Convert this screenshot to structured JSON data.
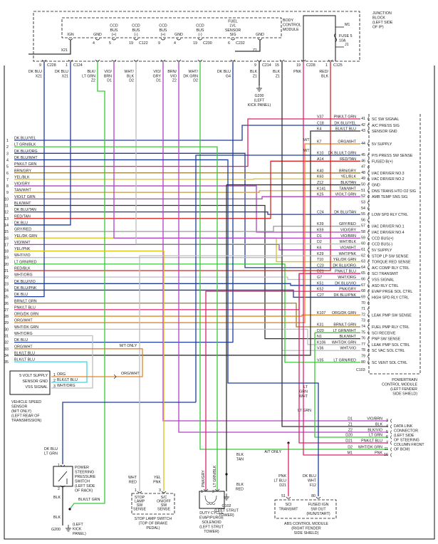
{
  "colors": {
    "DK BLU": "#1f3c9c",
    "LT GRN": "#39c939",
    "BLK": "#333333",
    "ORG": "#e0862a",
    "WHT": "#bdbdbd",
    "YEL": "#d6c21a",
    "VIO": "#b040c4",
    "PNK": "#e0206e",
    "RED": "#d82525",
    "BRN": "#9a7a30",
    "TAN": "#c9a256",
    "GRY": "#9a9a9a",
    "LT BLU": "#3fd3e6",
    "DK GRN": "#1f8a3a"
  },
  "junction_block": {
    "label": [
      "JUNCTION",
      "BLOCK",
      "(LEFT SIDE",
      "OF IP)"
    ],
    "fuse": [
      "FUSE 5",
      "10A"
    ],
    "feeds": [
      "M1",
      "J1"
    ]
  },
  "bcm": {
    "label": [
      "BODY",
      "CONTROL",
      "MODULE"
    ],
    "pins": [
      {
        "lines": [
          "IGN"
        ],
        "num": "",
        "conn": ""
      },
      {
        "lines": [
          "GND"
        ],
        "num": "4",
        "conn": ""
      },
      {
        "lines": [
          "CCD",
          "BUS",
          "(+)"
        ],
        "num": "5",
        "conn": ""
      },
      {
        "lines": [
          "CCD",
          "BUS",
          "(-)"
        ],
        "num": "19",
        "conn": "C122"
      },
      {
        "lines": [
          "CCD",
          "BUS",
          "(+)"
        ],
        "num": "9",
        "conn": ""
      },
      {
        "lines": [
          "GND"
        ],
        "num": "4",
        "conn": ""
      },
      {
        "lines": [
          "CCD",
          "BUS",
          "(-)"
        ],
        "num": "19",
        "conn": "C230"
      },
      {
        "lines": [
          "FUEL",
          "LVL",
          "SENSOR",
          "SIG"
        ],
        "num": "6",
        "conn": "C232"
      },
      {
        "lines": [
          "GND"
        ],
        "num": "",
        "conn": ""
      }
    ],
    "ign_code": "X21",
    "gnd_code": "Z1"
  },
  "top_wires": [
    {
      "pin": "9",
      "conn": "C228",
      "color": "DK BLU",
      "code": "X21"
    },
    {
      "pin": "1",
      "conn": "C124",
      "color": "DK BLU",
      "code": "X21"
    },
    {
      "pin": "",
      "conn": "",
      "color": "BLK/LT GRN",
      "code": "Z2"
    },
    {
      "pin": "",
      "conn": "",
      "color": "VIO/BRN",
      "code": "D1"
    },
    {
      "pin": "",
      "conn": "",
      "color": "WHT/BLK",
      "code": "D2"
    },
    {
      "pin": "",
      "conn": "",
      "color": "VIO/GRY",
      "code": "D1"
    },
    {
      "pin": "",
      "conn": "",
      "color": "BRN/VIO",
      "code": "Z2"
    },
    {
      "pin": "",
      "conn": "",
      "color": "WHT/DK GRN",
      "code": "D2"
    },
    {
      "pin": "",
      "conn": "",
      "color": "DK BLU",
      "code": "G4"
    },
    {
      "pin": "9",
      "conn": "C214",
      "color": "BLK",
      "code": "Z1"
    },
    {
      "pin": "15",
      "conn": "",
      "color": "BLK",
      "code": "Z1"
    },
    {
      "pin": "19",
      "conn": "C228",
      "color": "PNK",
      "code": ""
    },
    {
      "pin": "1",
      "conn": "C125",
      "color": "RED/BLK",
      "code": ""
    }
  ],
  "g200_top": [
    "G200",
    "(LEFT",
    "KICK PANEL)"
  ],
  "left_connector": [
    "DK BLU/YEL",
    "LT GRN/BLK",
    "DK BLU/ORG",
    "DK BLU/WHT",
    "PNK/LT GRN",
    "BRN/GRY",
    "YEL/BLK",
    "VIO/GRY",
    "TAN/WHT",
    "VIO/LT GRN",
    "BLK/WHT",
    "DK BLU/TAN",
    "RED/TAN",
    "DK BLU",
    "GRY/RED",
    "YEL/DK GRN",
    "VIO/WHT",
    "YEL/PNK",
    "WHT/VIO",
    "LT GRN/RED",
    "RED/BLK",
    "WHT/ORG",
    "DK BLU/VIO",
    "DK BLU/PNK",
    "DK BLU",
    "BRN/LT GRN",
    "PNK/LT BLU",
    "ORG/DK GRN",
    "ORG/WHT",
    "WHT/DK GRN",
    "WHT/ORG",
    "DK BLU",
    "ORG/WHT",
    "BLK/LT BLU",
    "BLK/LT BLU"
  ],
  "pcm": {
    "connector": "C103",
    "label": [
      "POWERTRAIN",
      "CONTROL MODULE",
      "(LEFT FENDER",
      "SIDE SHIELD)"
    ],
    "pins": [
      {
        "pin": "41",
        "code": "V37",
        "color": "PNK/LT GRN",
        "func": "SC SW SIGNAL"
      },
      {
        "pin": "42",
        "code": "C18",
        "color": "DK BLU/YEL",
        "func": "A/C PRESS SIG"
      },
      {
        "pin": "43",
        "code": "K4",
        "color": "BLK/LT BLU",
        "func": "SENSOR GND"
      },
      {
        "pin": "44",
        "code": "K7",
        "color": "ORG/WHT",
        "func": "5V SUPPLY"
      },
      {
        "pin": "45",
        "code": "K10",
        "color": "DK BLU/LT GRN",
        "func": "P/S PRESS SW SENSE"
      },
      {
        "pin": "46",
        "code": "A14",
        "color": "RED/TAN",
        "func": "FUSED B(+)"
      },
      {
        "pin": "47",
        "code": "",
        "color": "",
        "func": ""
      },
      {
        "pin": "48",
        "code": "K40",
        "color": "BRN/GRY",
        "func": "I/AC DRIVER NO.3"
      },
      {
        "pin": "49",
        "code": "K60",
        "color": "YEL/BLK",
        "func": "I/AC DRIVER NO.2"
      },
      {
        "pin": "50",
        "code": "Z12",
        "color": "BLK/TAN",
        "func": "GND"
      },
      {
        "pin": "51",
        "code": "K141",
        "color": "TAN/WHT",
        "func": "DNS TRANS HTD O2 SIG"
      },
      {
        "pin": "52",
        "code": "K25",
        "color": "VIO/LT GRN",
        "func": "AMB TEMP SNS SIG"
      },
      {
        "pin": "53",
        "code": "",
        "color": "",
        "func": ""
      },
      {
        "pin": "54",
        "code": "",
        "color": "",
        "func": ""
      },
      {
        "pin": "55",
        "code": "C24",
        "color": "DK BLU/TAN",
        "func": "LOW SPD RLY CTRL"
      },
      {
        "pin": "56",
        "code": "",
        "color": "",
        "func": ""
      },
      {
        "pin": "57",
        "code": "K39",
        "color": "GRY/RED",
        "func": "I/AC DRIVER NO.1"
      },
      {
        "pin": "58",
        "code": "K59",
        "color": "VIO/GRY",
        "func": "I/AC DRIVER NO.4"
      },
      {
        "pin": "59",
        "code": "D1",
        "color": "VIO/BRN",
        "func": "CCD BUS(+)"
      },
      {
        "pin": "60",
        "code": "D2",
        "color": "WHT/BLK",
        "func": "CCD BUS(-)"
      },
      {
        "pin": "61",
        "code": "K6",
        "color": "VIO/WHT",
        "func": "5V SUPPLY"
      },
      {
        "pin": "62",
        "code": "K29",
        "color": "WHT/PNK",
        "func": "STOP LP SW SENSE"
      },
      {
        "pin": "63",
        "code": "T10",
        "color": "YEL/DK GRN",
        "func": "TORQUE RED SENSE"
      },
      {
        "pin": "64",
        "code": "C23",
        "color": "DK BLU/ORG",
        "func": "A/C COMP RLY CTRL"
      },
      {
        "pin": "65",
        "code": "D21",
        "color": "PNK/LT BLU",
        "func": "SCI TRANSMIT"
      },
      {
        "pin": "66",
        "code": "G7",
        "color": "WHT/ORG",
        "func": "VSS SIGNAL"
      },
      {
        "pin": "67",
        "code": "K51",
        "color": "DK BLU/VIO",
        "func": "ASD RLY CTRL"
      },
      {
        "pin": "68",
        "code": "K52",
        "color": "PNK/GRY",
        "func": "EVAP PRGE SOL CTRL"
      },
      {
        "pin": "69",
        "code": "C27",
        "color": "DK BLU/PNK",
        "func": "HIGH SPD RLY CTRL"
      },
      {
        "pin": "70",
        "code": "",
        "color": "",
        "func": ""
      },
      {
        "pin": "71",
        "code": "",
        "color": "",
        "func": ""
      },
      {
        "pin": "72",
        "code": "K107",
        "color": "ORG/DK GRN",
        "func": "LEAK PMP SW SENSE"
      },
      {
        "pin": "73",
        "code": "",
        "color": "",
        "func": ""
      },
      {
        "pin": "74",
        "code": "K31",
        "color": "BRN/LT GRN",
        "func": "FUEL PMP RLY CTRL"
      },
      {
        "pin": "75",
        "code": "D20",
        "color": "LT GRN/WHT",
        "func": "SCI RECEIVE"
      },
      {
        "pin": "76",
        "code": "N1",
        "color": "BLK/WHT",
        "func": "PNP SW SENSE"
      },
      {
        "pin": "77",
        "code": "K106",
        "color": "WHT/DK GRN",
        "func": "LEAK PMP SOL CTRL"
      },
      {
        "pin": "78",
        "code": "V36",
        "color": "WHT/VIO",
        "func": "SC VAC SOL CTRL"
      },
      {
        "pin": "79",
        "code": "",
        "color": "",
        "func": ""
      },
      {
        "pin": "80",
        "code": "V35",
        "color": "LT GRN/RED",
        "func": "SC VENT SOL CTRL"
      }
    ]
  },
  "vss": {
    "pins": [
      {
        "num": "1",
        "name": "5 VOLT SUPPLY",
        "color": "ORG"
      },
      {
        "num": "2",
        "name": "SENSOR GND",
        "color": "BLK/LT BLU"
      },
      {
        "num": "3",
        "name": "VSS SIGNAL",
        "color": "WHT/ORG"
      }
    ],
    "label": [
      "VEHICLE SPEED",
      "SENSOR",
      "(M/T ONLY)",
      "(LEFT REAR OF",
      "TRANSMISSION)"
    ],
    "splice_color": "ORG/WHT",
    "note": "M/T ONLY"
  },
  "ps_switch": {
    "wire_top": [
      "DK BLU",
      "LT GRN"
    ],
    "pin_top": "1",
    "pin_bottom": "2",
    "label": [
      "POWER",
      "STEERING",
      "PRESSURE",
      "SWITCH",
      "(LEFT SIDE",
      "OF RACK)"
    ],
    "wire_bottom": "BLK",
    "ground_wire": "BLK",
    "jumper": "BLK/LT GRN",
    "ground": "G200",
    "ground_label": [
      "(LEFT",
      "KICK",
      "PANEL)"
    ]
  },
  "stop_lamp": {
    "pins": [
      {
        "num": "1",
        "wire": [
          "WHT",
          "RED"
        ],
        "func": [
          "STOP",
          "LAMP",
          "SW",
          "SENSE"
        ]
      },
      {
        "num": "3",
        "wire": [
          "YEL",
          "PNK"
        ],
        "func": [
          "S/C",
          "ON/OFF",
          "SW",
          "SENSE"
        ]
      }
    ],
    "label": [
      "STOP LAMP SWITCH",
      "(TOP OF BRAKE",
      "PEDAL)"
    ]
  },
  "solenoid": {
    "pins": [
      {
        "num": "1",
        "wire": "PNK/GRY"
      },
      {
        "num": "2",
        "wire": "LT GRN/BLK"
      }
    ],
    "label": [
      "DUTY CYCLE",
      "EVAP/PURGE",
      "SOLENOID",
      "(LEFT STRUT",
      "TOWER)"
    ]
  },
  "g102": {
    "wire_top": [
      "BLK",
      "TAN"
    ],
    "wire_bottom": [
      "BLK",
      "RED"
    ],
    "label": [
      "G102",
      "(LEFT STRUT",
      "TOWER)"
    ]
  },
  "abs": {
    "pins": [
      {
        "num": "51",
        "wire": [
          "PNK",
          "LT BLU",
          "D21"
        ],
        "func": [
          "SCI",
          "TRANSMIT"
        ]
      },
      {
        "num": "80",
        "wire": [
          "DK BLU",
          "WHT",
          "F12"
        ],
        "func": [
          "FUSED IGN",
          "SW OUT",
          "(RUN/START)"
        ]
      }
    ],
    "label": [
      "ABS CONTROL MODULE",
      "(RIGHT FENDER",
      "SIDE SHIELD)"
    ]
  },
  "dlc": {
    "pins": [
      {
        "pin": "3",
        "code": "D1",
        "color": "VIO/BRN"
      },
      {
        "pin": "4",
        "code": "Z1",
        "color": "BLK"
      },
      {
        "pin": "5",
        "code": "Z2",
        "color": "BLK/VIO"
      },
      {
        "pin": "6",
        "code": "D20",
        "color": "LT GRN"
      },
      {
        "pin": "7",
        "code": "D21",
        "color": "PNK/LT BLU"
      },
      {
        "pin": "11",
        "code": "D2",
        "color": "WHT/DK GRN"
      },
      {
        "pin": "16",
        "code": "M1",
        "color": "PNK"
      }
    ],
    "label": [
      "DATA LINK",
      "CONNECTOR",
      "(LEFT SIDE",
      "OF STEERING",
      "COLUMN FRONT",
      "OF BCM)"
    ],
    "splice_wire": [
      "LT",
      "GRN",
      "WHT"
    ],
    "branch_wire": "LT GRN",
    "at_only": "A/T ONLY"
  },
  "mt_labels": [
    "M/T",
    "M/T"
  ]
}
